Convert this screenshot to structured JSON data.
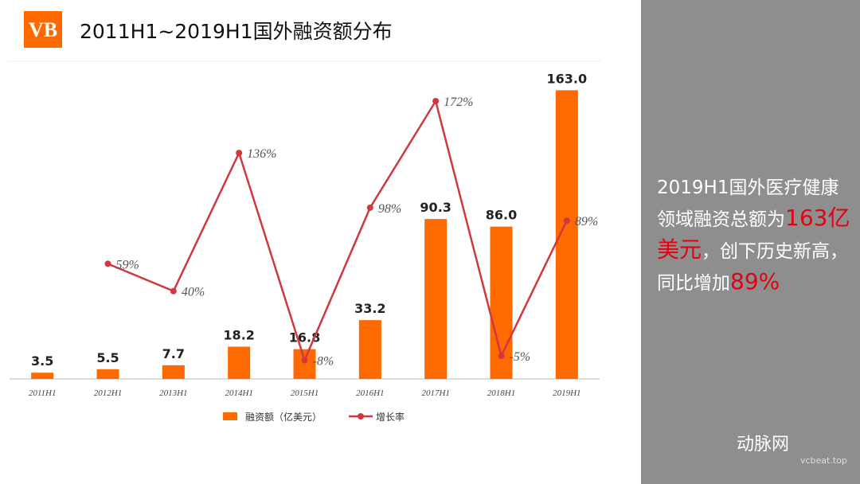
{
  "header": {
    "logo": "VB",
    "title": "2011H1~2019H1国外融资额分布"
  },
  "chart_data": {
    "type": "bar",
    "categories": [
      "2011H1",
      "2012H1",
      "2013H1",
      "2014H1",
      "2015H1",
      "2016H1",
      "2017H1",
      "2018H1",
      "2019H1"
    ],
    "series": [
      {
        "name": "融资额（亿美元）",
        "type": "bar",
        "color": "#ff6a00",
        "values": [
          3.5,
          5.5,
          7.7,
          18.2,
          16.8,
          33.2,
          90.3,
          86.0,
          163.0
        ],
        "value_labels": [
          "3.5",
          "5.5",
          "7.7",
          "18.2",
          "16.8",
          "33.2",
          "90.3",
          "86.0",
          "163.0"
        ]
      },
      {
        "name": "增长率",
        "type": "line",
        "axis": "y2",
        "color": "#d0383f",
        "values": [
          null,
          59,
          40,
          136,
          -8,
          98,
          172,
          -5,
          89
        ],
        "value_labels": [
          null,
          "59%",
          "40%",
          "136%",
          "-8%",
          "98%",
          "172%",
          "-5%",
          "89%"
        ]
      }
    ],
    "ylim": [
      0,
      178
    ],
    "y2lim": [
      -21,
      198
    ]
  },
  "side_panel": {
    "segments": [
      {
        "text": "2019H1国外医疗健康领域融资总额为",
        "highlight": false
      },
      {
        "text": "163亿美元",
        "highlight": true
      },
      {
        "text": "，创下历史新高，同比增加",
        "highlight": false
      },
      {
        "text": "89%",
        "highlight": true
      }
    ]
  },
  "watermark": {
    "name": "动脉网",
    "url": "vcbeat.top"
  }
}
